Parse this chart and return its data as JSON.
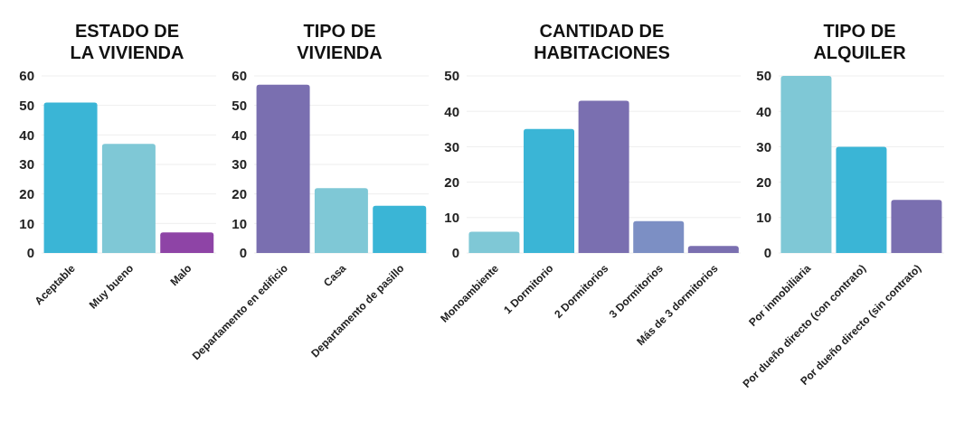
{
  "chart_data": [
    {
      "type": "bar",
      "title": "ESTADO DE LA VIVIENDA",
      "categories": [
        "Aceptable",
        "Muy bueno",
        "Malo"
      ],
      "values": [
        51,
        37,
        7
      ],
      "colors": [
        "#3ab5d6",
        "#7fc8d6",
        "#8e44a6"
      ],
      "ylim": [
        0,
        60
      ],
      "yticks": [
        0,
        10,
        20,
        30,
        40,
        50,
        60
      ],
      "grid": "y"
    },
    {
      "type": "bar",
      "title": "TIPO DE VIVIENDA",
      "categories": [
        "Departamento en edificio",
        "Casa",
        "Departamento de pasillo"
      ],
      "values": [
        57,
        22,
        16
      ],
      "colors": [
        "#7a6fb0",
        "#7fc8d6",
        "#3ab5d6"
      ],
      "ylim": [
        0,
        60
      ],
      "yticks": [
        0,
        10,
        20,
        30,
        40,
        50,
        60
      ],
      "grid": "y"
    },
    {
      "type": "bar",
      "title": "CANTIDAD DE HABITACIONES",
      "categories": [
        "Monoambiente",
        "1 Dormitorio",
        "2 Dormitorios",
        "3 Dormitorios",
        "Más de 3 dormitorios"
      ],
      "values": [
        6,
        35,
        43,
        9,
        2
      ],
      "colors": [
        "#7fc8d6",
        "#3ab5d6",
        "#7a6fb0",
        "#7c8fc4",
        "#7a6fb0"
      ],
      "ylim": [
        0,
        50
      ],
      "yticks": [
        0,
        10,
        20,
        30,
        40,
        50
      ],
      "grid": "y"
    },
    {
      "type": "bar",
      "title": "TIPO DE ALQUILER",
      "categories": [
        "Por inmobiliaria",
        "Por dueño directo (con contrato)",
        "Por dueño directo (sin contrato)"
      ],
      "values": [
        50,
        30,
        15
      ],
      "colors": [
        "#7fc8d6",
        "#3ab5d6",
        "#7a6fb0"
      ],
      "ylim": [
        0,
        50
      ],
      "yticks": [
        0,
        10,
        20,
        30,
        40,
        50
      ],
      "grid": "y"
    }
  ]
}
